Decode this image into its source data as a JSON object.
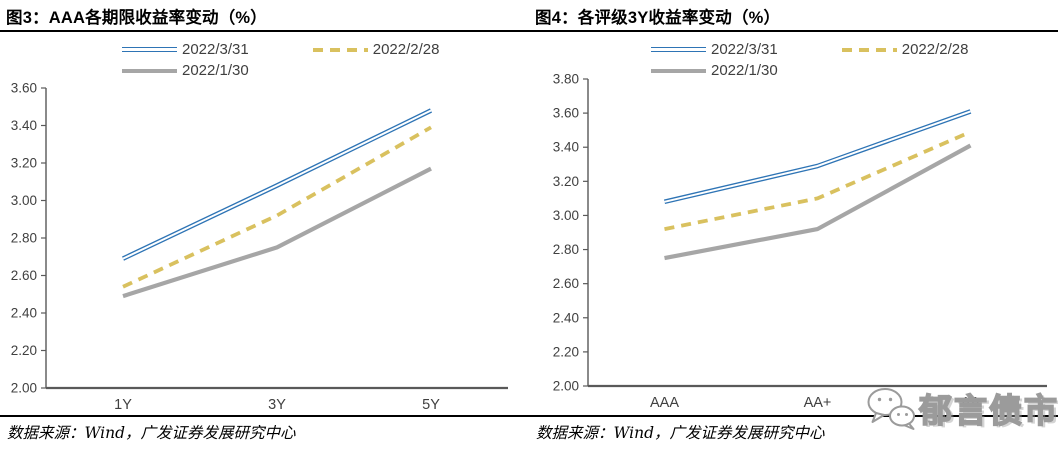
{
  "source_note": "数据来源：Wind，广发证券发展研究中心",
  "watermark": {
    "icon": "wechat-icon",
    "text": "郁言债市"
  },
  "style_colors": {
    "axis_line": "#595959",
    "tick_label": "#404040",
    "title_text": "#000000",
    "rule_line": "#000000",
    "watermark_gray": "#9B9B9B"
  },
  "chart_data": [
    {
      "type": "line",
      "title": "图3：AAA各期限收益率变动（%）",
      "categories": [
        "1Y",
        "3Y",
        "5Y"
      ],
      "series": [
        {
          "name": "2022/3/31",
          "color": "#2E74B5",
          "line_style": "double",
          "values": [
            2.69,
            3.08,
            3.48
          ]
        },
        {
          "name": "2022/2/28",
          "color": "#D9C15F",
          "line_style": "dashed",
          "values": [
            2.54,
            2.92,
            3.39
          ]
        },
        {
          "name": "2022/1/30",
          "color": "#A6A6A6",
          "line_style": "solid",
          "values": [
            2.49,
            2.75,
            3.17
          ]
        }
      ],
      "ylim": [
        2.0,
        3.6
      ],
      "ytick_step": 0.2,
      "ytick_format": "0.00",
      "legend_position": "top",
      "grid": false,
      "xlabel": "",
      "ylabel": ""
    },
    {
      "type": "line",
      "title": "图4：各评级3Y收益率变动（%）",
      "categories": [
        "AAA",
        "AA+",
        "AA"
      ],
      "series": [
        {
          "name": "2022/3/31",
          "color": "#2E74B5",
          "line_style": "double",
          "values": [
            3.08,
            3.29,
            3.61
          ]
        },
        {
          "name": "2022/2/28",
          "color": "#D9C15F",
          "line_style": "dashed",
          "values": [
            2.92,
            3.1,
            3.49
          ]
        },
        {
          "name": "2022/1/30",
          "color": "#A6A6A6",
          "line_style": "solid",
          "values": [
            2.75,
            2.92,
            3.41
          ]
        }
      ],
      "ylim": [
        2.0,
        3.8
      ],
      "ytick_step": 0.2,
      "ytick_format": "0.00",
      "legend_position": "top",
      "grid": false,
      "xlabel": "",
      "ylabel": ""
    }
  ]
}
